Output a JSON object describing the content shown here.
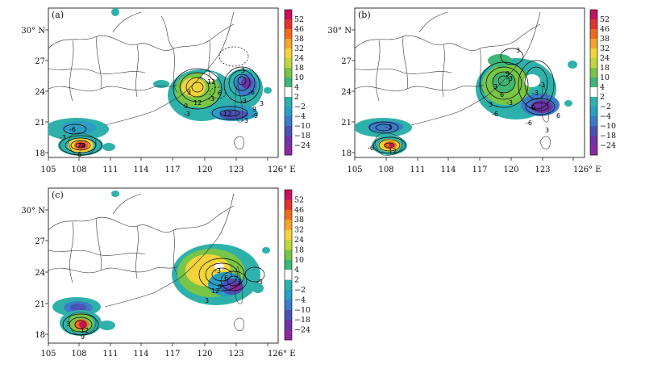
{
  "panels": [
    {
      "label": "(a)",
      "x_ticks": [
        "105",
        "108",
        "111",
        "114",
        "117",
        "120",
        "123",
        "126° E"
      ],
      "y_ticks": [
        "30° N",
        "27",
        "24",
        "21",
        "18"
      ],
      "contour_labels": [
        "-6",
        "-3",
        "24",
        "6",
        "12",
        "12",
        "-3",
        "9",
        "-3",
        "3",
        "-3",
        "-6",
        "6",
        "-9",
        "9",
        "-3",
        "12",
        "-3",
        "3"
      ]
    },
    {
      "label": "(b)",
      "x_ticks": [
        "105",
        "108",
        "111",
        "114",
        "117",
        "120",
        "123",
        "126° E"
      ],
      "y_ticks": [
        "30° N",
        "27",
        "24",
        "21",
        "18"
      ],
      "contour_labels": [
        "-3",
        "-6",
        "12",
        "3",
        "6",
        "-3",
        "9",
        "-3",
        "3",
        "-3",
        "-6",
        "-6",
        "-3",
        "6",
        "-6",
        "3",
        "3"
      ]
    },
    {
      "label": "(c)",
      "x_ticks": [
        "105",
        "108",
        "111",
        "114",
        "117",
        "120",
        "123",
        "126° E"
      ],
      "y_ticks": [
        "30° N",
        "27",
        "24",
        "21",
        "18"
      ],
      "contour_labels": [
        "3",
        "9",
        "-3",
        "6",
        "9",
        "12",
        "3",
        "-3",
        "12",
        "3"
      ]
    }
  ],
  "colorbar": {
    "labels": [
      "52",
      "46",
      "38",
      "32",
      "24",
      "18",
      "10",
      "4",
      "2",
      "−2",
      "−4",
      "−10",
      "−18",
      "−24"
    ],
    "colors": [
      "#c5125d",
      "#e23132",
      "#f06b1e",
      "#f4a52e",
      "#f3d33b",
      "#bfd63f",
      "#79c547",
      "#3fb576",
      "#ffffff",
      "#2eb1aa",
      "#2a9ec4",
      "#3b7bc7",
      "#4a52b5",
      "#6c34a6",
      "#8a2a9e"
    ]
  }
}
